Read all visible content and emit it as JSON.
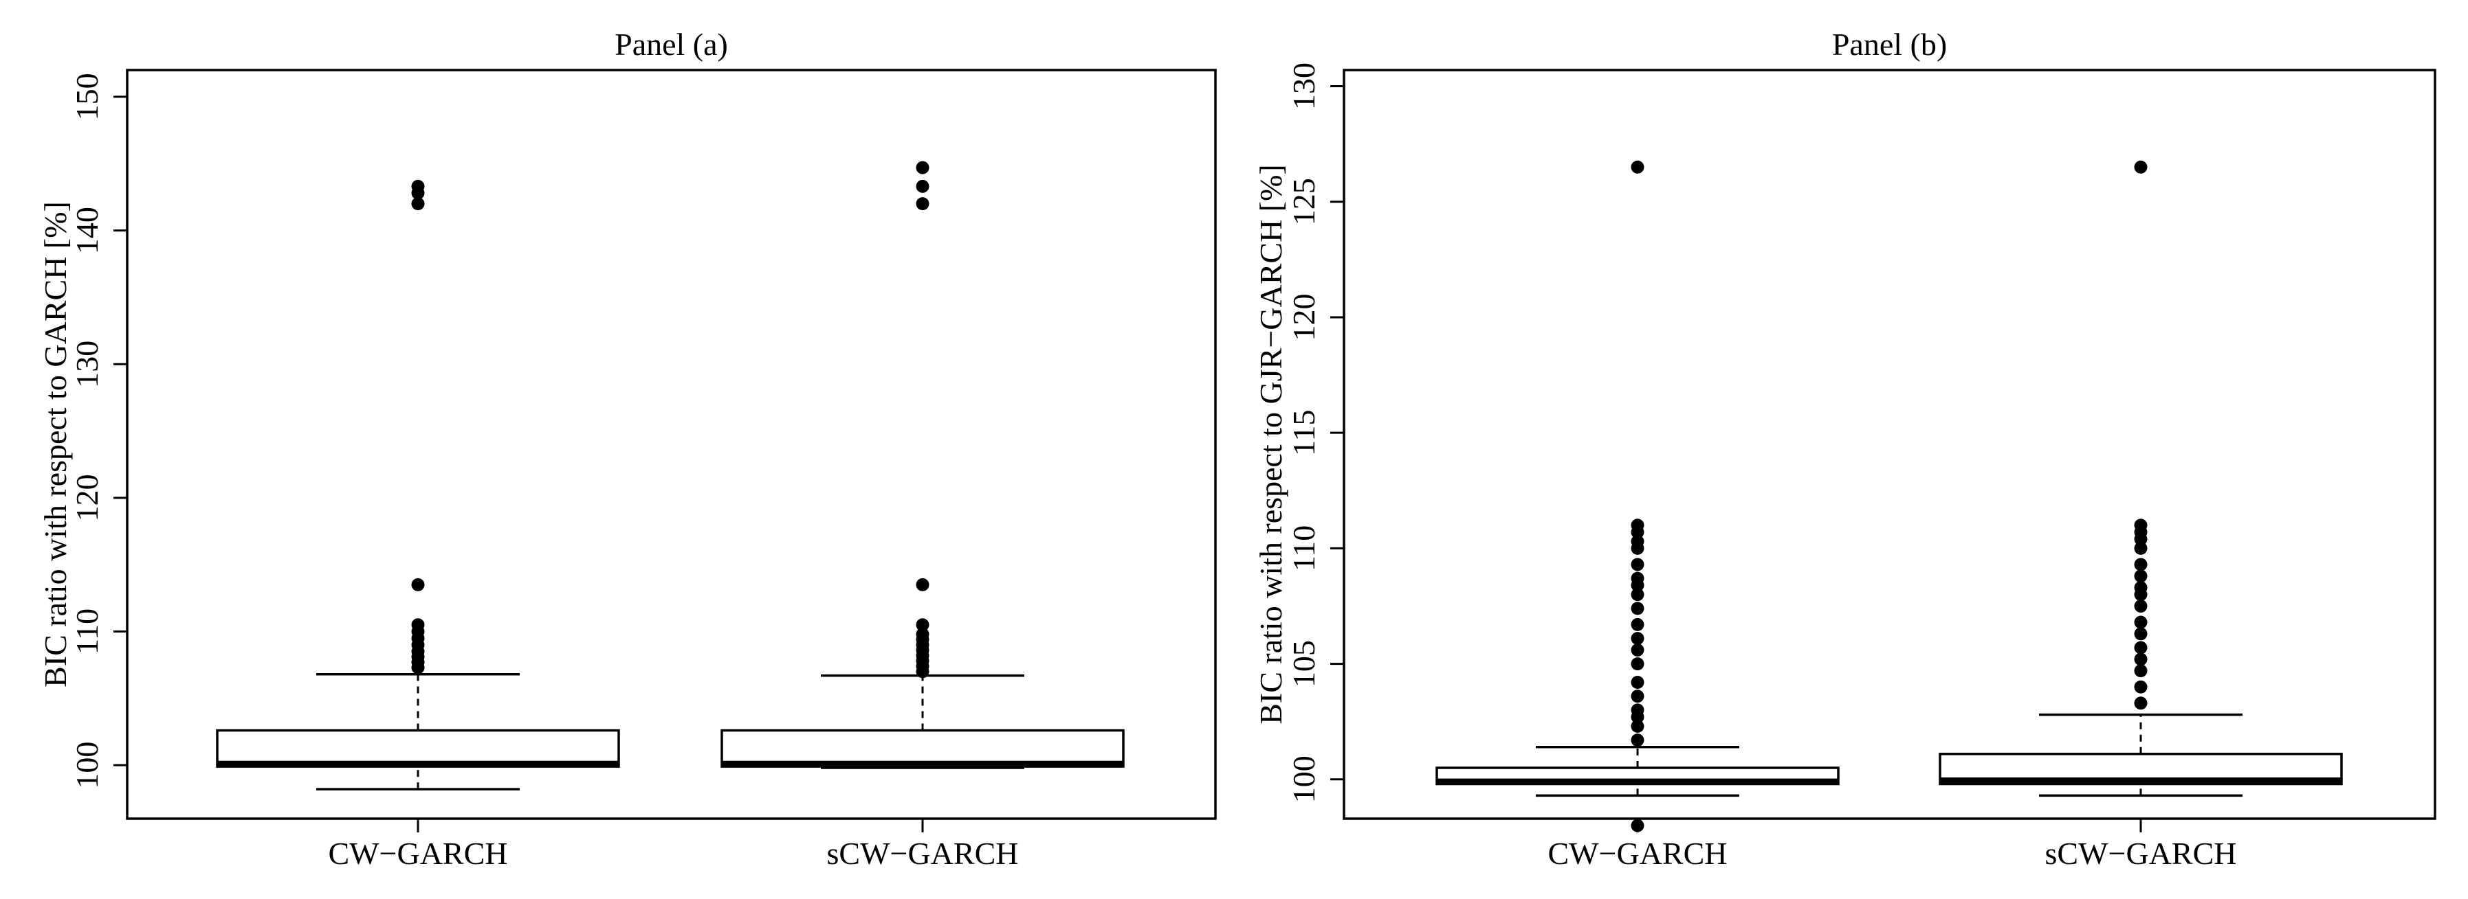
{
  "chart_data": [
    {
      "type": "box",
      "title": "Panel (a)",
      "xlabel": "",
      "ylabel": "BIC ratio with respect to GARCH [%]",
      "ylim": [
        96.0,
        152.0
      ],
      "yticks": [
        "100",
        "110",
        "120",
        "130",
        "140",
        "150"
      ],
      "categories": [
        "CW−GARCH",
        "sCW−GARCH"
      ],
      "boxes": [
        {
          "name": "CW−GARCH",
          "whisker_low": 98.2,
          "q1": 99.9,
          "median": 100.1,
          "q3": 102.6,
          "whisker_high": 106.8,
          "outliers": [
            107.3,
            107.7,
            108.1,
            108.5,
            109.0,
            109.5,
            110.0,
            110.5,
            113.5,
            142.0,
            142.8,
            143.3
          ]
        },
        {
          "name": "sCW−GARCH",
          "whisker_low": 99.8,
          "q1": 99.9,
          "median": 100.1,
          "q3": 102.6,
          "whisker_high": 106.7,
          "outliers": [
            107.0,
            107.4,
            107.8,
            108.2,
            108.6,
            109.0,
            109.4,
            109.8,
            110.5,
            113.5,
            142.0,
            143.3,
            144.7
          ]
        }
      ]
    },
    {
      "type": "box",
      "title": "Panel (b)",
      "xlabel": "",
      "ylabel": "BIC ratio with respect to GJR−GARCH [%]",
      "ylim": [
        98.3,
        130.7
      ],
      "yticks": [
        "100",
        "105",
        "110",
        "115",
        "120",
        "125",
        "130"
      ],
      "categories": [
        "CW−GARCH",
        "sCW−GARCH"
      ],
      "boxes": [
        {
          "name": "CW−GARCH",
          "whisker_low": 99.3,
          "q1": 99.8,
          "median": 99.9,
          "q3": 100.5,
          "whisker_high": 101.4,
          "outliers": [
            98.0,
            101.7,
            102.3,
            102.7,
            103.0,
            103.6,
            104.2,
            105.0,
            105.6,
            106.1,
            106.7,
            107.4,
            108.0,
            108.4,
            108.7,
            109.3,
            110.0,
            110.3,
            110.7,
            111.0,
            126.5
          ]
        },
        {
          "name": "sCW−GARCH",
          "whisker_low": 99.3,
          "q1": 99.8,
          "median": 99.95,
          "q3": 101.1,
          "whisker_high": 102.8,
          "outliers": [
            103.3,
            104.0,
            104.7,
            105.2,
            105.7,
            106.3,
            106.8,
            107.5,
            108.0,
            108.3,
            108.8,
            109.3,
            110.0,
            110.4,
            110.7,
            111.0,
            126.5
          ]
        }
      ]
    }
  ]
}
